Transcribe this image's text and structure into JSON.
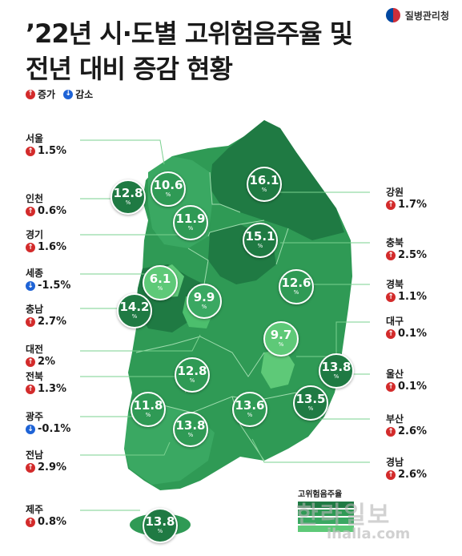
{
  "title_line1": "’22년 시·도별 고위험음주율 및",
  "title_line2": "전년 대비 증감 현황",
  "legend": {
    "increase": "증가",
    "decrease": "감소"
  },
  "brand": "질병관리청",
  "colors": {
    "up": "#d32b2b",
    "down": "#1e63d6",
    "map_dark": "#1f7a43",
    "map_mid": "#2f9a55",
    "map_light": "#5ec978"
  },
  "regions": [
    {
      "name": "서울",
      "value": "10.6",
      "change": "1.5%",
      "direction": "up"
    },
    {
      "name": "인천",
      "value": "12.8",
      "change": "0.6%",
      "direction": "up"
    },
    {
      "name": "경기",
      "value": "11.9",
      "change": "1.6%",
      "direction": "up"
    },
    {
      "name": "세종",
      "value": "6.1",
      "change": "-1.5%",
      "direction": "down"
    },
    {
      "name": "충남",
      "value": "14.2",
      "change": "2.7%",
      "direction": "up"
    },
    {
      "name": "대전",
      "value": "9.9",
      "change": "2%",
      "direction": "up"
    },
    {
      "name": "전북",
      "value": "12.8",
      "change": "1.3%",
      "direction": "up"
    },
    {
      "name": "광주",
      "value": "11.8",
      "change": "-0.1%",
      "direction": "down"
    },
    {
      "name": "전남",
      "value": "13.8",
      "change": "2.9%",
      "direction": "up"
    },
    {
      "name": "제주",
      "value": "13.8",
      "change": "0.8%",
      "direction": "up"
    },
    {
      "name": "강원",
      "value": "16.1",
      "change": "1.7%",
      "direction": "up"
    },
    {
      "name": "충북",
      "value": "15.1",
      "change": "2.5%",
      "direction": "up"
    },
    {
      "name": "경북",
      "value": "12.6",
      "change": "1.1%",
      "direction": "up"
    },
    {
      "name": "대구",
      "value": "9.7",
      "change": "0.1%",
      "direction": "up"
    },
    {
      "name": "울산",
      "value": "13.8",
      "change": "0.1%",
      "direction": "up"
    },
    {
      "name": "부산",
      "value": "13.5",
      "change": "2.6%",
      "direction": "up"
    },
    {
      "name": "경남",
      "value": "13.6",
      "change": "2.6%",
      "direction": "up"
    }
  ],
  "unit": "%",
  "legend_box_title": "고위험음주율",
  "watermark": "한라일보",
  "watermark_sub": "ihalla.com"
}
